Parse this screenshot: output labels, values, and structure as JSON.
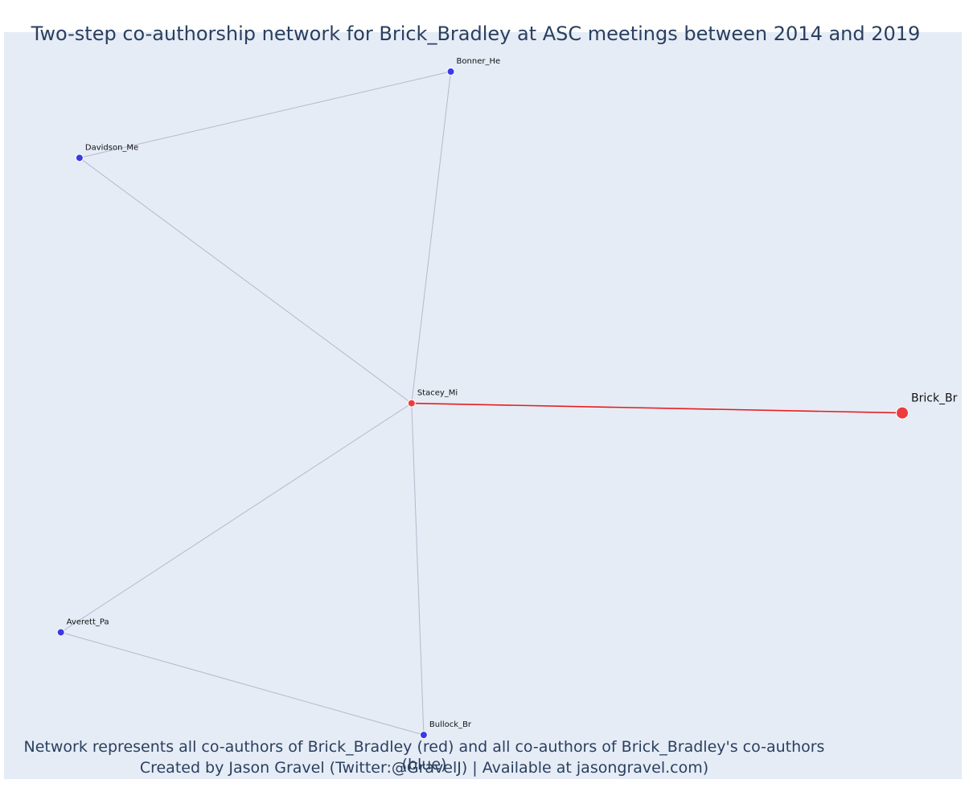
{
  "title": "Two-step co-authorship network for Brick_Bradley at ASC meetings between 2014 and 2019",
  "footer": {
    "line1": "Network represents all co-authors of Brick_Bradley (red) and all co-authors of Brick_Bradley's co-authors (blue)",
    "line2": "Created by Jason Gravel (Twitter:@GravelJ) | Available at jasongravel.com)"
  },
  "colors": {
    "background": "#e5ecf6",
    "focal": "#ef3b3b",
    "coauthor": "#ef3b3b",
    "second_step": "#3a3ae6",
    "edge": "#b8b8cc",
    "focal_edge": "#e81c1c",
    "text": "#2a3f5f"
  },
  "chart_data": {
    "type": "network",
    "x_range": [
      0,
      1
    ],
    "y_range": [
      0,
      1
    ],
    "grid": false,
    "legend": "none",
    "nodes": [
      {
        "id": "Brick_Br",
        "label": "Brick_Br",
        "role": "focal",
        "x": 0.95,
        "y": 0.488
      },
      {
        "id": "Stacey_Mi",
        "label": "Stacey_Mi",
        "role": "coauthor",
        "x": 0.424,
        "y": 0.501
      },
      {
        "id": "Bonner_He",
        "label": "Bonner_He",
        "role": "second_step",
        "x": 0.466,
        "y": 0.947
      },
      {
        "id": "Davidson_Me",
        "label": "Davidson_Me",
        "role": "second_step",
        "x": 0.068,
        "y": 0.831
      },
      {
        "id": "Averett_Pa",
        "label": "Averett_Pa",
        "role": "second_step",
        "x": 0.048,
        "y": 0.193
      },
      {
        "id": "Bullock_Br",
        "label": "Bullock_Br",
        "role": "second_step",
        "x": 0.437,
        "y": 0.055
      }
    ],
    "edges": [
      {
        "source": "Brick_Br",
        "target": "Stacey_Mi",
        "focal": true
      },
      {
        "source": "Stacey_Mi",
        "target": "Bonner_He",
        "focal": false
      },
      {
        "source": "Stacey_Mi",
        "target": "Davidson_Me",
        "focal": false
      },
      {
        "source": "Stacey_Mi",
        "target": "Averett_Pa",
        "focal": false
      },
      {
        "source": "Stacey_Mi",
        "target": "Bullock_Br",
        "focal": false
      },
      {
        "source": "Davidson_Me",
        "target": "Bonner_He",
        "focal": false
      },
      {
        "source": "Averett_Pa",
        "target": "Bullock_Br",
        "focal": false
      }
    ]
  }
}
